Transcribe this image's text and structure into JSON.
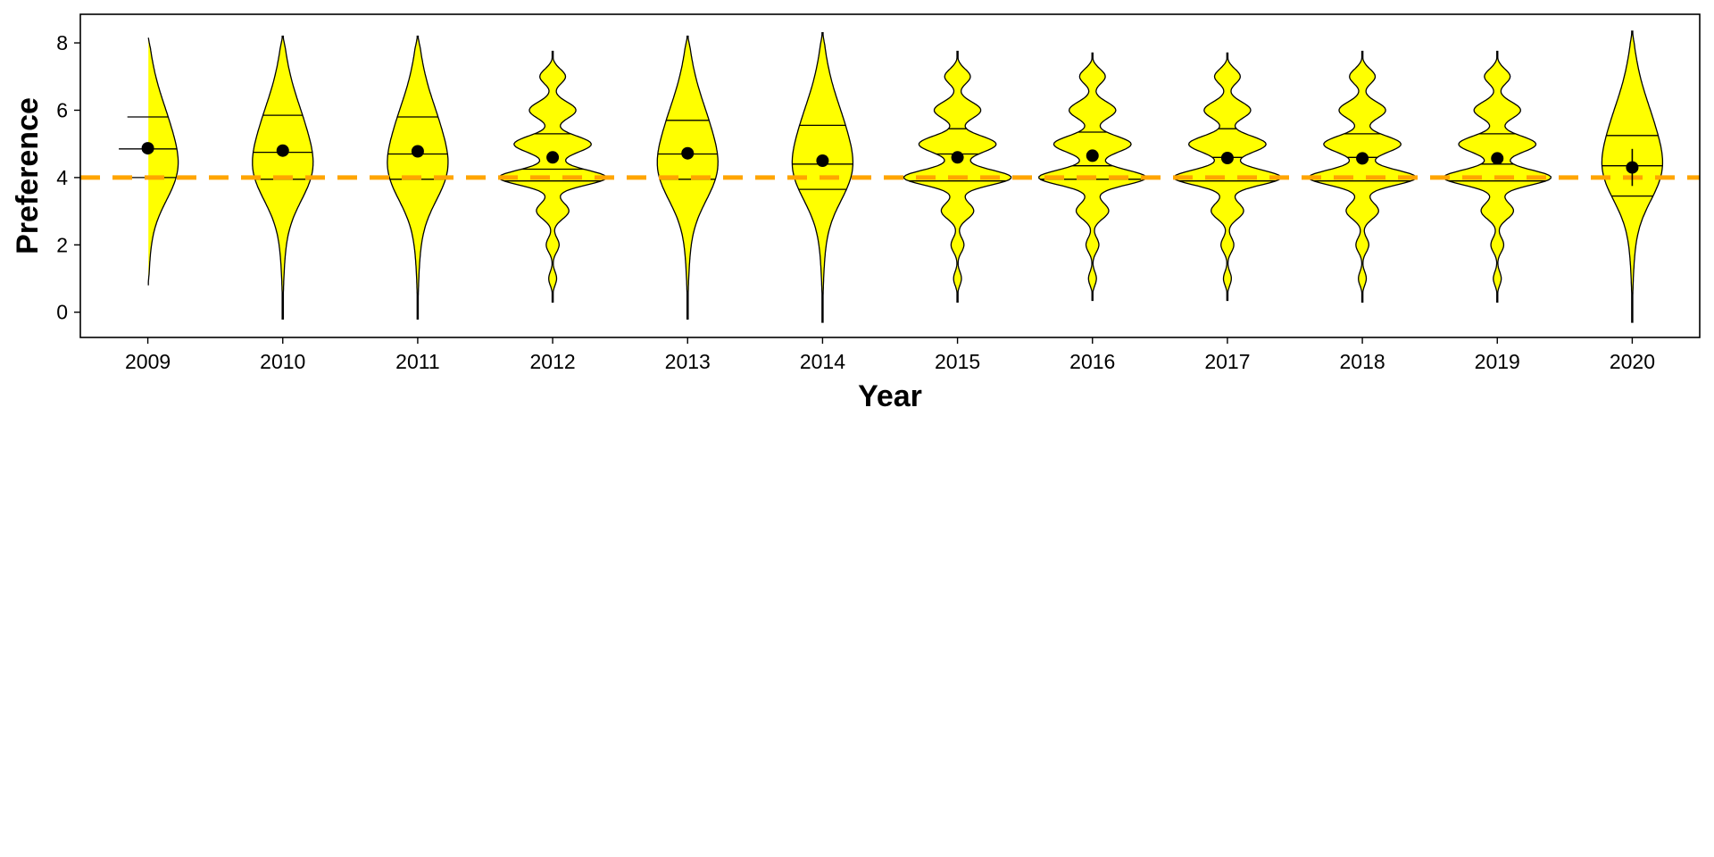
{
  "chart_data": {
    "type": "violin",
    "xlabel": "Year",
    "ylabel": "Preference",
    "categories": [
      "2009",
      "2010",
      "2011",
      "2012",
      "2013",
      "2014",
      "2015",
      "2016",
      "2017",
      "2018",
      "2019",
      "2020"
    ],
    "ylim": [
      -0.75,
      8.85
    ],
    "yticks": [
      0,
      2,
      4,
      6,
      8
    ],
    "grid": false,
    "reference_line": {
      "y": 4,
      "style": "dashed",
      "color": "#FFA500"
    },
    "colors": {
      "violin_fill": "#FFFF00",
      "outline": "#000000",
      "mean_point": "#000000"
    },
    "series": [
      {
        "category": "2009",
        "shape": "smooth",
        "min": 0.8,
        "max": 8.2,
        "quartiles": [
          4.0,
          4.85,
          5.8
        ],
        "mean": 4.87,
        "ci": [
          4.8,
          4.95
        ]
      },
      {
        "category": "2010",
        "shape": "smooth",
        "min": -0.2,
        "max": 8.2,
        "quartiles": [
          3.95,
          4.75,
          5.85
        ],
        "mean": 4.8,
        "ci": [
          4.72,
          4.88
        ]
      },
      {
        "category": "2011",
        "shape": "smooth",
        "min": -0.2,
        "max": 8.2,
        "quartiles": [
          3.95,
          4.7,
          5.8
        ],
        "mean": 4.78,
        "ci": [
          4.7,
          4.86
        ]
      },
      {
        "category": "2012",
        "shape": "lumpy",
        "min": 0.3,
        "max": 7.75,
        "quartiles": [
          3.9,
          4.25,
          5.3
        ],
        "mean": 4.6,
        "ci": [
          4.52,
          4.68
        ]
      },
      {
        "category": "2013",
        "shape": "smooth",
        "min": -0.2,
        "max": 8.2,
        "quartiles": [
          3.95,
          4.7,
          5.7
        ],
        "mean": 4.72,
        "ci": [
          4.64,
          4.8
        ]
      },
      {
        "category": "2014",
        "shape": "smooth",
        "min": -0.3,
        "max": 8.3,
        "quartiles": [
          3.65,
          4.4,
          5.55
        ],
        "mean": 4.5,
        "ci": [
          4.4,
          4.6
        ]
      },
      {
        "category": "2015",
        "shape": "lumpy",
        "min": 0.3,
        "max": 7.75,
        "quartiles": [
          3.9,
          4.7,
          5.45
        ],
        "mean": 4.6,
        "ci": [
          4.52,
          4.68
        ]
      },
      {
        "category": "2016",
        "shape": "lumpy",
        "min": 0.35,
        "max": 7.7,
        "quartiles": [
          3.95,
          4.35,
          5.35
        ],
        "mean": 4.65,
        "ci": [
          4.57,
          4.73
        ]
      },
      {
        "category": "2017",
        "shape": "lumpy",
        "min": 0.35,
        "max": 7.7,
        "quartiles": [
          3.9,
          4.6,
          5.45
        ],
        "mean": 4.58,
        "ci": [
          4.5,
          4.66
        ]
      },
      {
        "category": "2018",
        "shape": "lumpy",
        "min": 0.3,
        "max": 7.75,
        "quartiles": [
          3.9,
          4.6,
          5.3
        ],
        "mean": 4.57,
        "ci": [
          4.49,
          4.65
        ]
      },
      {
        "category": "2019",
        "shape": "lumpy",
        "min": 0.3,
        "max": 7.75,
        "quartiles": [
          3.9,
          4.4,
          5.3
        ],
        "mean": 4.57,
        "ci": [
          4.49,
          4.65
        ]
      },
      {
        "category": "2020",
        "shape": "smooth",
        "min": -0.3,
        "max": 8.35,
        "quartiles": [
          3.45,
          4.35,
          5.25
        ],
        "mean": 4.3,
        "ci": [
          3.75,
          4.85
        ]
      }
    ]
  }
}
